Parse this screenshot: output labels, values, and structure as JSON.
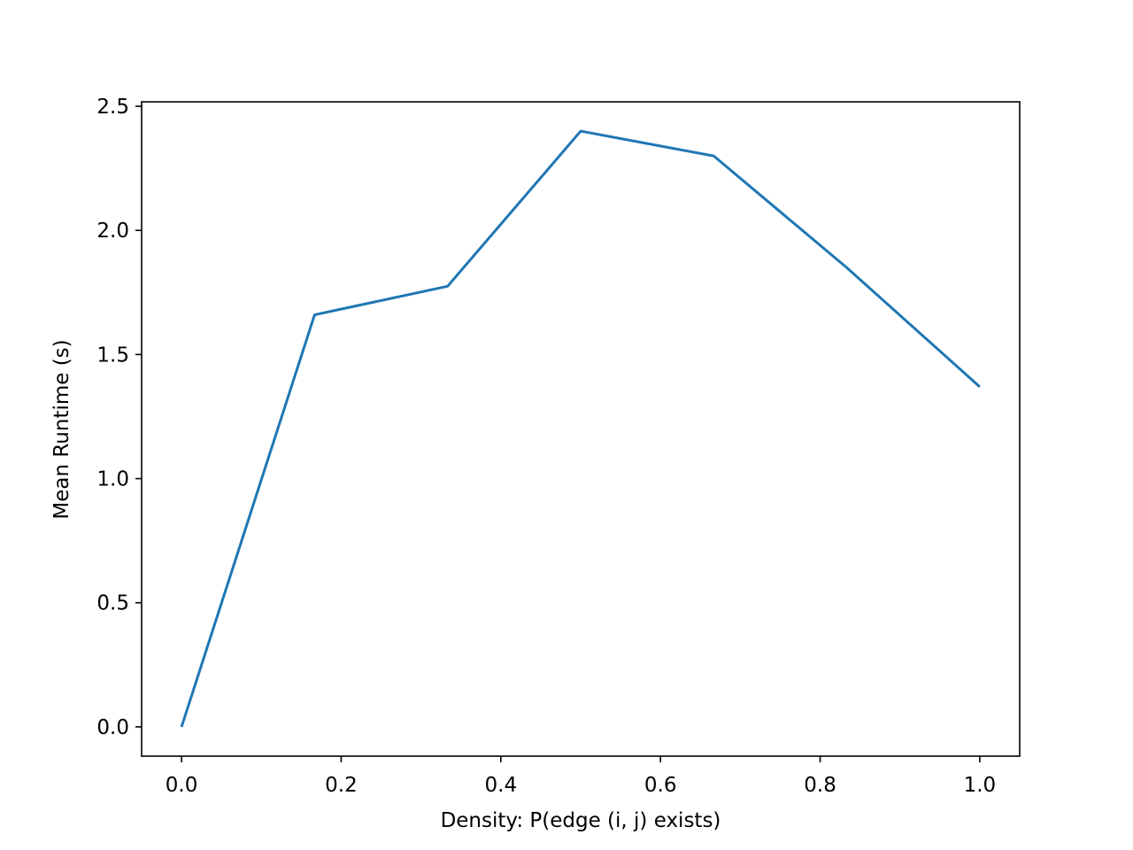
{
  "chart_data": {
    "type": "line",
    "title": "",
    "xlabel": "Density: P(edge (i, j) exists)",
    "ylabel": "Mean Runtime (s)",
    "xlim": [
      -0.05,
      1.05
    ],
    "ylim": [
      -0.118,
      2.518
    ],
    "xticks": [
      0.0,
      0.2,
      0.4,
      0.6,
      0.8,
      1.0
    ],
    "xtick_labels": [
      "0.0",
      "0.2",
      "0.4",
      "0.6",
      "0.8",
      "1.0"
    ],
    "yticks": [
      0.0,
      0.5,
      1.0,
      1.5,
      2.0,
      2.5
    ],
    "ytick_labels": [
      "0.0",
      "0.5",
      "1.0",
      "1.5",
      "2.0",
      "2.5"
    ],
    "grid": false,
    "legend": "none",
    "series": [
      {
        "color": "#1f77b4",
        "x": [
          0.0,
          0.1667,
          0.3333,
          0.5,
          0.6667,
          0.8333,
          1.0
        ],
        "y": [
          0.0,
          1.66,
          1.775,
          2.4,
          2.3,
          1.85,
          1.37
        ]
      }
    ]
  }
}
